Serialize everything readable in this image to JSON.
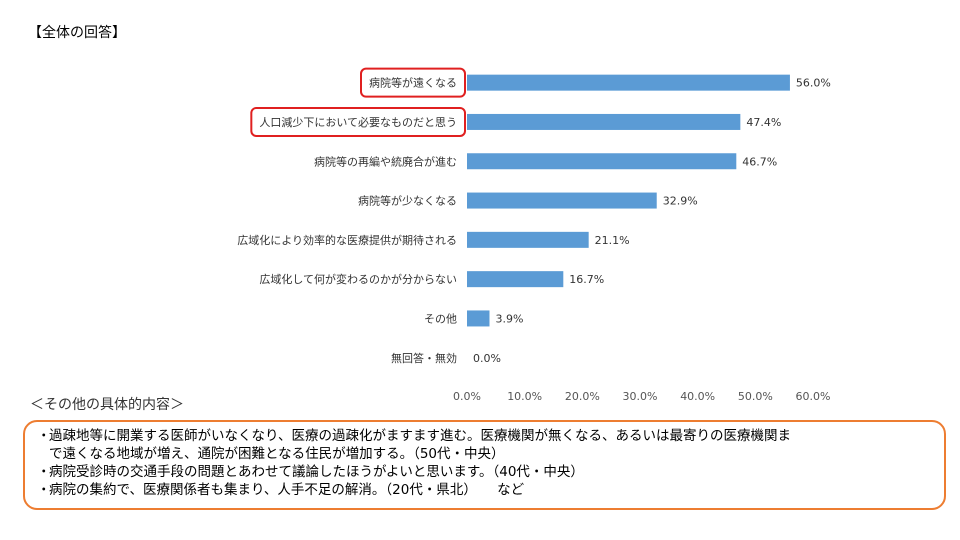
{
  "title": "【全体の回答】",
  "chart_data": {
    "type": "bar",
    "orientation": "horizontal",
    "categories": [
      "病院等が遠くなる",
      "人口減少下において必要なものだと思う",
      "病院等の再編や統廃合が進む",
      "病院等が少なくなる",
      "広域化により効率的な医療提供が期待される",
      "広域化して何が変わるのかが分からない",
      "その他",
      "無回答・無効"
    ],
    "values": [
      56.0,
      47.4,
      46.7,
      32.9,
      21.1,
      16.7,
      3.9,
      0.0
    ],
    "data_labels": [
      "56.0%",
      "47.4%",
      "46.7%",
      "32.9%",
      "21.1%",
      "16.7%",
      "3.9%",
      "0.0%"
    ],
    "xlim": [
      0,
      60
    ],
    "xticks": [
      "0.0%",
      "10.0%",
      "20.0%",
      "30.0%",
      "40.0%",
      "50.0%",
      "60.0%"
    ],
    "highlighted": [
      "病院等が遠くなる",
      "人口減少下において必要なものだと思う"
    ],
    "bar_color": "#5b9bd5",
    "highlight_color": "#e02020",
    "grid": false
  },
  "other_heading": "＜その他の具体的内容＞",
  "notes": {
    "bullet": "・",
    "items": [
      [
        "過疎地等に開業する医師がいなくなり、医療の過疎化がますます進む。医療機関が無くなる、あるいは最寄りの医療機関ま",
        "で遠くなる地域が増え、通院が困難となる住民が増加する。（50代・中央）"
      ],
      [
        "病院受診時の交通手段の問題とあわせて議論したほうがよいと思います。（40代・中央）"
      ],
      [
        "病院の集約で、医療関係者も集まり、人手不足の解消。（20代・県北）　　など"
      ]
    ]
  }
}
